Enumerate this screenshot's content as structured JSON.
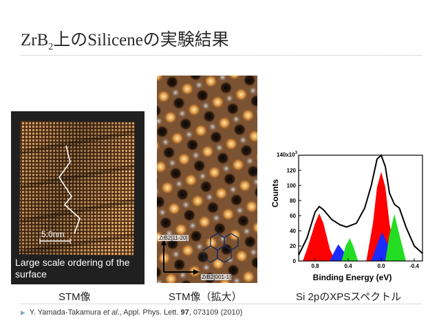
{
  "slide": {
    "title_prefix": "ZrB",
    "title_sub": "2",
    "title_suffix": "上のSiliceneの実験結果"
  },
  "panels": {
    "stm_large": {
      "scale_label": "5.0nm",
      "overlay_line1": "Large scale ordering of the",
      "overlay_line2": "surface"
    },
    "stm_zoom": {
      "axis_vertical": "ZrB2[11-20]",
      "axis_horizontal": "ZrB2[001-1]"
    },
    "xps": {
      "ylabel": "Counts",
      "xlabel": "Binding Energy (eV)",
      "ytop_label": "140x10",
      "ytop_exp": "3"
    }
  },
  "captions": {
    "left": "STM像",
    "center": "STM像（拡大）",
    "right": "Si 2pのXPSスペクトル"
  },
  "reference": {
    "authors": "Y. Yamada-Takamura ",
    "etal": "et al",
    "journal": "., Appl. Phys. Lett. ",
    "volume": "97",
    "pages": ", 073109 (2010)"
  },
  "chart_data": {
    "type": "area",
    "xlabel": "Binding Energy (eV)",
    "ylabel": "Counts",
    "xlim": [
      1.0,
      -0.5
    ],
    "ylim": [
      0,
      140
    ],
    "x_ticks": [
      0.8,
      0.4,
      0.0,
      -0.4
    ],
    "y_ticks": [
      0,
      20,
      40,
      60,
      80,
      100,
      120
    ],
    "colors": {
      "red": "#ff0000",
      "blue": "#1a2cff",
      "green": "#22dd22",
      "envelope": "#000000"
    },
    "series": [
      {
        "color": "red",
        "x": [
          0.95,
          0.9,
          0.8,
          0.75,
          0.7,
          0.62,
          0.55
        ],
        "values": [
          0,
          15,
          50,
          63,
          50,
          15,
          0
        ]
      },
      {
        "color": "blue",
        "x": [
          0.62,
          0.57,
          0.52,
          0.45,
          0.38
        ],
        "values": [
          0,
          12,
          22,
          12,
          0
        ]
      },
      {
        "color": "green",
        "x": [
          0.48,
          0.43,
          0.38,
          0.34,
          0.28
        ],
        "values": [
          0,
          20,
          30,
          20,
          0
        ]
      },
      {
        "color": "red",
        "x": [
          0.18,
          0.1,
          0.05,
          0.0,
          -0.05,
          -0.1,
          -0.18
        ],
        "values": [
          0,
          50,
          98,
          118,
          98,
          50,
          0
        ]
      },
      {
        "color": "blue",
        "x": [
          0.12,
          0.05,
          -0.01,
          -0.08,
          -0.15
        ],
        "values": [
          0,
          22,
          38,
          22,
          0
        ]
      },
      {
        "color": "green",
        "x": [
          -0.05,
          -0.1,
          -0.16,
          -0.22,
          -0.3
        ],
        "values": [
          0,
          35,
          62,
          35,
          0
        ]
      },
      {
        "color": "envelope",
        "x": [
          1.0,
          0.9,
          0.8,
          0.75,
          0.7,
          0.6,
          0.5,
          0.42,
          0.3,
          0.2,
          0.12,
          0.05,
          0.0,
          -0.05,
          -0.1,
          -0.16,
          -0.22,
          -0.3,
          -0.4,
          -0.5
        ],
        "values": [
          8,
          30,
          65,
          72,
          68,
          55,
          48,
          45,
          50,
          70,
          100,
          135,
          140,
          125,
          90,
          75,
          70,
          45,
          20,
          10
        ]
      }
    ]
  }
}
